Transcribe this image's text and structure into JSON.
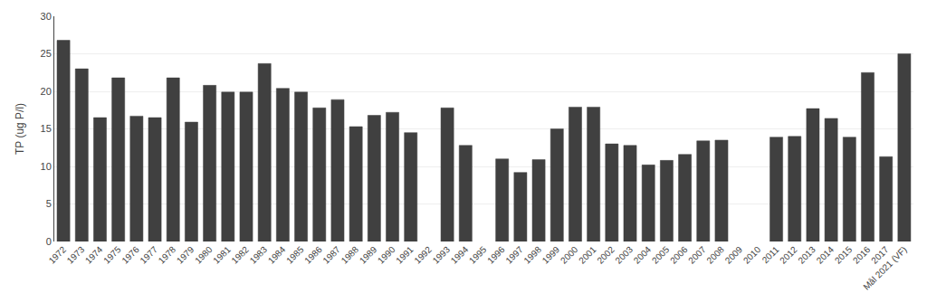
{
  "chart_data": {
    "type": "bar",
    "ylabel": "TP (ug P/l)",
    "categories": [
      "1972",
      "1973",
      "1974",
      "1975",
      "1976",
      "1977",
      "1978",
      "1979",
      "1980",
      "1981",
      "1982",
      "1983",
      "1984",
      "1985",
      "1986",
      "1987",
      "1988",
      "1989",
      "1990",
      "1991",
      "1992",
      "1993",
      "1994",
      "1995",
      "1996",
      "1997",
      "1998",
      "1999",
      "2000",
      "2001",
      "2002",
      "2003",
      "2004",
      "2005",
      "2006",
      "2007",
      "2008",
      "2009",
      "2010",
      "2011",
      "2012",
      "2013",
      "2014",
      "2015",
      "2016",
      "2017",
      "Mål 2021 (VF)"
    ],
    "values": [
      26.8,
      23.0,
      16.5,
      21.8,
      16.7,
      16.5,
      21.8,
      15.9,
      20.8,
      19.9,
      19.9,
      23.7,
      20.4,
      19.9,
      17.8,
      18.9,
      15.3,
      16.8,
      17.2,
      14.5,
      null,
      17.8,
      12.8,
      null,
      11.0,
      9.2,
      10.9,
      15.0,
      17.9,
      17.9,
      13.0,
      12.8,
      10.2,
      10.8,
      11.6,
      13.4,
      13.5,
      null,
      null,
      13.9,
      14.0,
      17.7,
      16.4,
      13.9,
      22.5,
      11.3,
      25.0
    ],
    "color": "#404040",
    "ylim": [
      0,
      30
    ],
    "yticks": [
      0,
      5,
      10,
      15,
      20,
      25,
      30
    ],
    "grid": true
  }
}
